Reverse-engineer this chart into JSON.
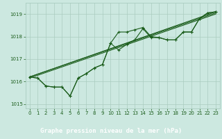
{
  "bg_color": "#cce8e0",
  "grid_color": "#aaccc0",
  "line_color": "#1a5c1a",
  "marker_color": "#1a5c1a",
  "xlabel": "Graphe pression niveau de la mer (hPa)",
  "xlabel_color": "#1a5c1a",
  "ylim": [
    1014.8,
    1019.5
  ],
  "xlim": [
    -0.5,
    23.5
  ],
  "yticks": [
    1015,
    1016,
    1017,
    1018,
    1019
  ],
  "xticks": [
    0,
    1,
    2,
    3,
    4,
    5,
    6,
    7,
    8,
    9,
    10,
    11,
    12,
    13,
    14,
    15,
    16,
    17,
    18,
    19,
    20,
    21,
    22,
    23
  ],
  "series1_x": [
    0,
    1,
    2,
    3,
    4,
    5,
    6,
    7,
    8,
    9,
    10,
    11,
    12,
    13,
    14,
    15,
    16,
    17,
    18,
    19,
    20,
    21,
    22,
    23
  ],
  "series1_y": [
    1016.2,
    1016.15,
    1015.8,
    1015.75,
    1015.75,
    1015.35,
    1016.15,
    1016.35,
    1016.6,
    1016.75,
    1017.7,
    1017.4,
    1017.65,
    1017.85,
    1018.35,
    1017.95,
    1017.95,
    1017.85,
    1017.85,
    1018.2,
    1018.2,
    1018.8,
    1019.05,
    1019.1
  ],
  "series2_x": [
    0,
    1,
    2,
    3,
    4,
    5,
    6,
    7,
    8,
    9,
    10,
    11,
    12,
    13,
    14,
    15,
    16,
    17,
    18,
    19,
    20,
    21,
    22,
    23
  ],
  "series2_y": [
    1016.2,
    1016.15,
    1015.8,
    1015.75,
    1015.75,
    1015.35,
    1016.15,
    1016.35,
    1016.6,
    1016.75,
    1017.7,
    1018.2,
    1018.2,
    1018.3,
    1018.4,
    1018.0,
    1017.95,
    1017.85,
    1017.85,
    1018.2,
    1018.2,
    1018.8,
    1019.05,
    1019.1
  ],
  "trend1_x": [
    0,
    23
  ],
  "trend1_y": [
    1016.2,
    1019.05
  ],
  "trend2_x": [
    0,
    23
  ],
  "trend2_y": [
    1016.2,
    1019.1
  ],
  "trend3_x": [
    0,
    23
  ],
  "trend3_y": [
    1016.15,
    1019.0
  ],
  "bottom_bar_color": "#3a8a3a",
  "bottom_bar_text": "Graphe pression niveau de la mer (hPa)"
}
